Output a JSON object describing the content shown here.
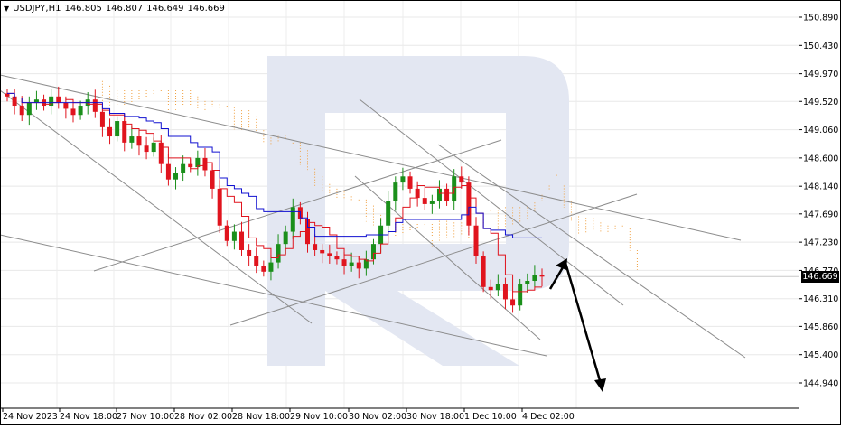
{
  "header": {
    "dropdown_icon": "triangle-down-icon",
    "symbol": "USDJPY,H1",
    "open": "146.805",
    "high": "146.807",
    "low": "146.649",
    "close": "146.669"
  },
  "current_price_label": "146.669",
  "chart_data": {
    "type": "candlestick",
    "symbol": "USDJPY",
    "timeframe": "H1",
    "y_axis_ticks": [
      "150.890",
      "150.430",
      "149.970",
      "149.520",
      "149.060",
      "148.600",
      "148.140",
      "147.690",
      "147.230",
      "146.770",
      "146.310",
      "145.860",
      "145.400",
      "144.940"
    ],
    "x_axis_ticks": [
      "24 Nov 2023",
      "24 Nov 18:00",
      "27 Nov 10:00",
      "28 Nov 02:00",
      "28 Nov 18:00",
      "29 Nov 10:00",
      "30 Nov 02:00",
      "30 Nov 18:00",
      "1 Dec 10:00",
      "4 Dec 02:00"
    ],
    "ylim": [
      144.94,
      150.89
    ],
    "current_price": 146.669,
    "ohlc_close_sequence": [
      149.6,
      149.45,
      149.3,
      149.5,
      149.55,
      149.45,
      149.6,
      149.5,
      149.4,
      149.3,
      149.45,
      149.55,
      149.35,
      149.1,
      148.95,
      149.2,
      148.85,
      148.95,
      148.8,
      148.7,
      148.85,
      148.5,
      148.25,
      148.35,
      148.5,
      148.45,
      148.6,
      148.4,
      148.1,
      147.5,
      147.25,
      147.4,
      147.1,
      147.0,
      146.85,
      146.75,
      146.9,
      147.2,
      147.4,
      147.8,
      147.6,
      147.2,
      147.1,
      147.05,
      147.0,
      146.95,
      146.85,
      146.9,
      146.8,
      146.95,
      147.2,
      147.5,
      147.9,
      148.2,
      148.3,
      148.1,
      147.95,
      147.85,
      147.9,
      148.1,
      147.9,
      148.3,
      148.2,
      147.5,
      147.0,
      146.5,
      146.45,
      146.55,
      146.3,
      146.2,
      146.55,
      146.6,
      146.7,
      146.669
    ],
    "indicators": [
      "Ichimoku cloud",
      "Tenkan-sen (red)",
      "Kijun-sen (blue)"
    ],
    "forecast_arrows": [
      {
        "from_price": 146.6,
        "to_price": 147.2,
        "direction": "up"
      },
      {
        "from_price": 147.2,
        "to_price": 145.0,
        "direction": "down"
      }
    ],
    "colors": {
      "bull": "#1a8f1a",
      "bear": "#e0141e",
      "tenkan": "#e0141e",
      "kijun": "#1010d0",
      "cloud_bull": "#f0a040",
      "cloud_bear": "#b0a0d0",
      "trendline": "#8c8c8c",
      "watermark": "#dfe3ef"
    }
  }
}
